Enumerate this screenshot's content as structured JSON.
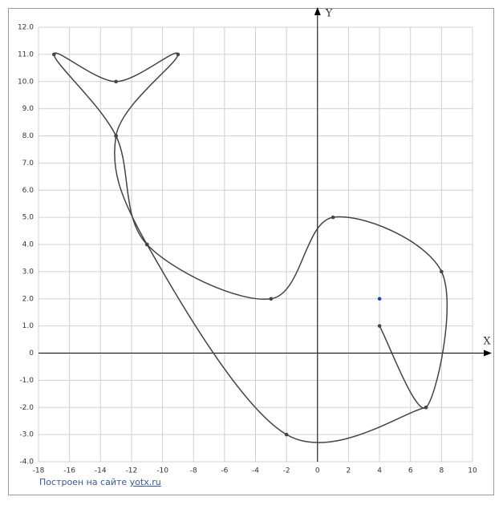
{
  "chart_data": {
    "type": "line",
    "x_label": "X",
    "y_label": "Y",
    "xlim": [
      -18,
      10
    ],
    "ylim": [
      -4,
      12
    ],
    "xticks": [
      -18,
      -16,
      -14,
      -12,
      -10,
      -8,
      -6,
      -4,
      -2,
      0,
      2,
      4,
      6,
      8,
      10
    ],
    "yticks": [
      {
        "value": -4,
        "label": "-4.0"
      },
      {
        "value": -3,
        "label": "-3.0"
      },
      {
        "value": -2,
        "label": "-2.0"
      },
      {
        "value": -1,
        "label": "-1.0"
      },
      0,
      {
        "value": 1,
        "label": "1.0"
      },
      {
        "value": 2,
        "label": "2.0"
      },
      {
        "value": 3,
        "label": "3.0"
      },
      {
        "value": 4,
        "label": "4.0"
      },
      {
        "value": 5,
        "label": "5.0"
      },
      {
        "value": 6,
        "label": "6.0"
      },
      {
        "value": 7,
        "label": "7.0"
      },
      {
        "value": 8,
        "label": "8.0"
      },
      {
        "value": 9,
        "label": "9.0"
      },
      {
        "value": 10,
        "label": "10.0"
      },
      {
        "value": 11,
        "label": "11.0"
      },
      {
        "value": 12,
        "label": "12.0"
      }
    ],
    "grid": true,
    "series": [
      {
        "color": "#444444",
        "smooth": true,
        "markers": true,
        "x": [
          4,
          7,
          8,
          1,
          -3,
          -11,
          -13,
          -17,
          -13,
          -9,
          -13,
          -11,
          -2,
          7
        ],
        "values": [
          1,
          -2,
          3,
          5,
          2,
          4,
          8,
          11,
          10,
          11,
          8,
          4,
          -3,
          -2
        ]
      },
      {
        "color": "#2244cc",
        "smooth": false,
        "markers": true,
        "x": [
          4
        ],
        "values": [
          2
        ]
      }
    ],
    "credit": {
      "text": "Построен на сайте",
      "link": "yotx.ru"
    }
  }
}
